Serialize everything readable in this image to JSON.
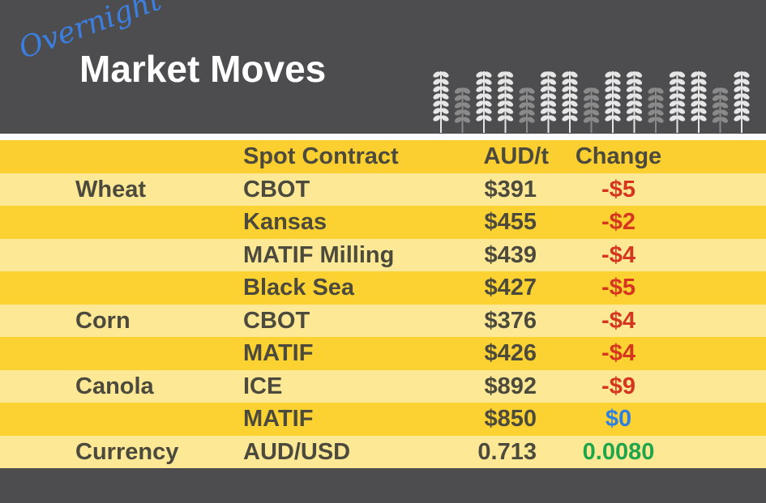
{
  "header": {
    "script": "Overnight",
    "title": "Market Moves"
  },
  "table": {
    "columns": [
      "Spot Contract",
      "AUD/t",
      "Change"
    ],
    "rows": [
      {
        "commodity": "Wheat",
        "contract": "CBOT",
        "price": "$391",
        "change": "-$5",
        "change_color": "#d6361f"
      },
      {
        "contract": "Kansas",
        "price": "$455",
        "change": "-$2",
        "change_color": "#d6361f"
      },
      {
        "contract": "MATIF Milling",
        "price": "$439",
        "change": "-$4",
        "change_color": "#d6361f"
      },
      {
        "contract": "Black Sea",
        "price": "$427",
        "change": "-$5",
        "change_color": "#d6361f"
      },
      {
        "commodity": "Corn",
        "contract": "CBOT",
        "price": "$376",
        "change": "-$4",
        "change_color": "#d6361f"
      },
      {
        "contract": "MATIF",
        "price": "$426",
        "change": "-$4",
        "change_color": "#d6361f"
      },
      {
        "commodity": "Canola",
        "contract": "ICE",
        "price": "$892",
        "change": "-$9",
        "change_color": "#d6361f"
      },
      {
        "contract": "MATIF",
        "price": "$850",
        "change": "$0",
        "change_color": "#2f7fe0"
      },
      {
        "commodity": "Currency",
        "contract": "AUD/USD",
        "price": "0.713",
        "change": "0.0080",
        "change_color": "#1fa64a"
      }
    ]
  }
}
